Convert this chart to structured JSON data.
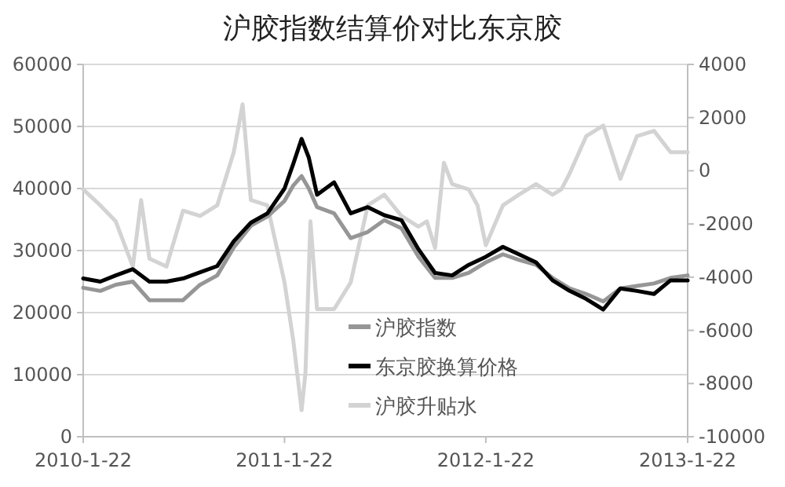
{
  "chart_data": {
    "type": "line",
    "title": "沪胶指数结算价对比东京胶",
    "x": [
      "2010-01-22",
      "2010-02-22",
      "2010-03-22",
      "2010-04-22",
      "2010-05-22",
      "2010-06-22",
      "2010-07-22",
      "2010-08-22",
      "2010-09-22",
      "2010-10-22",
      "2010-11-22",
      "2010-12-22",
      "2011-01-22",
      "2011-02-07",
      "2011-02-22",
      "2011-03-07",
      "2011-03-22",
      "2011-04-22",
      "2011-05-22",
      "2011-06-22",
      "2011-07-22",
      "2011-08-22",
      "2011-09-22",
      "2011-10-22",
      "2011-11-22",
      "2011-12-22",
      "2012-01-22",
      "2012-02-22",
      "2012-03-22",
      "2012-04-22",
      "2012-05-22",
      "2012-06-22",
      "2012-07-22",
      "2012-08-22",
      "2012-09-22",
      "2012-10-22",
      "2012-11-22",
      "2012-12-22",
      "2013-01-22"
    ],
    "series": [
      {
        "name": "沪胶指数",
        "color": "#969696",
        "values": [
          24000,
          23500,
          24500,
          25000,
          22000,
          22000,
          22000,
          24500,
          26000,
          30500,
          34000,
          35500,
          38000,
          40500,
          42000,
          40000,
          37000,
          36000,
          32000,
          33000,
          34900,
          33600,
          29000,
          25600,
          25600,
          26400,
          28100,
          29400,
          28500,
          27700,
          25600,
          23900,
          23000,
          21800,
          23900,
          24300,
          24700,
          25600,
          26000
        ]
      },
      {
        "name": "东京胶换算价格",
        "color": "#000000",
        "values": [
          25500,
          25000,
          26000,
          27000,
          25000,
          25000,
          25500,
          26500,
          27500,
          31500,
          34500,
          36000,
          40000,
          44000,
          48000,
          45000,
          39000,
          41000,
          36000,
          37000,
          35700,
          34900,
          30200,
          26400,
          26000,
          27700,
          29000,
          30600,
          29400,
          28100,
          25200,
          23500,
          22200,
          20500,
          23900,
          23500,
          23000,
          25200,
          25200
        ]
      },
      {
        "name": "沪胶升贴水",
        "color": "#d3d3d3",
        "axis": "y2",
        "x": [
          "2010-01-22",
          "2010-02-22",
          "2010-03-22",
          "2010-04-22",
          "2010-05-07",
          "2010-05-22",
          "2010-06-22",
          "2010-07-22",
          "2010-08-22",
          "2010-09-22",
          "2010-10-22",
          "2010-11-07",
          "2010-11-22",
          "2010-12-22",
          "2011-01-22",
          "2011-02-07",
          "2011-02-22",
          "2011-03-01",
          "2011-03-10",
          "2011-03-22",
          "2011-04-22",
          "2011-05-22",
          "2011-06-22",
          "2011-07-22",
          "2011-08-22",
          "2011-09-22",
          "2011-10-07",
          "2011-10-22",
          "2011-11-07",
          "2011-11-22",
          "2011-12-22",
          "2012-01-07",
          "2012-01-22",
          "2012-02-22",
          "2012-03-22",
          "2012-04-22",
          "2012-05-22",
          "2012-06-07",
          "2012-06-22",
          "2012-07-22",
          "2012-08-22",
          "2012-09-22",
          "2012-10-22",
          "2012-11-22",
          "2012-12-22",
          "2013-01-22"
        ],
        "values": [
          -700,
          -1300,
          -1900,
          -3600,
          -1100,
          -3300,
          -3600,
          -1500,
          -1700,
          -1300,
          700,
          2500,
          -1100,
          -1300,
          -4200,
          -6400,
          -9000,
          -7600,
          -1900,
          -5200,
          -5200,
          -4200,
          -1300,
          -900,
          -1700,
          -2100,
          -1900,
          -2900,
          300,
          -500,
          -700,
          -1300,
          -2800,
          -1300,
          -900,
          -500,
          -900,
          -700,
          -100,
          1300,
          1700,
          -300,
          1300,
          1500,
          700,
          700
        ]
      }
    ],
    "xlim": [
      "2010-01-22",
      "2013-01-22"
    ],
    "xticks": [
      {
        "value": "2010-01-22",
        "label": "2010-1-22"
      },
      {
        "value": "2011-01-22",
        "label": "2011-1-22"
      },
      {
        "value": "2012-01-22",
        "label": "2012-1-22"
      },
      {
        "value": "2013-01-22",
        "label": "2013-1-22"
      }
    ],
    "ylim": [
      0,
      60000
    ],
    "yticks": [
      0,
      10000,
      20000,
      30000,
      40000,
      50000,
      60000
    ],
    "y2lim": [
      -10000,
      4000
    ],
    "y2ticks": [
      -10000,
      -8000,
      -6000,
      -4000,
      -2000,
      0,
      2000,
      4000
    ],
    "grid": "y",
    "legend": "bottom",
    "marker": "none",
    "line_style": "solid"
  }
}
